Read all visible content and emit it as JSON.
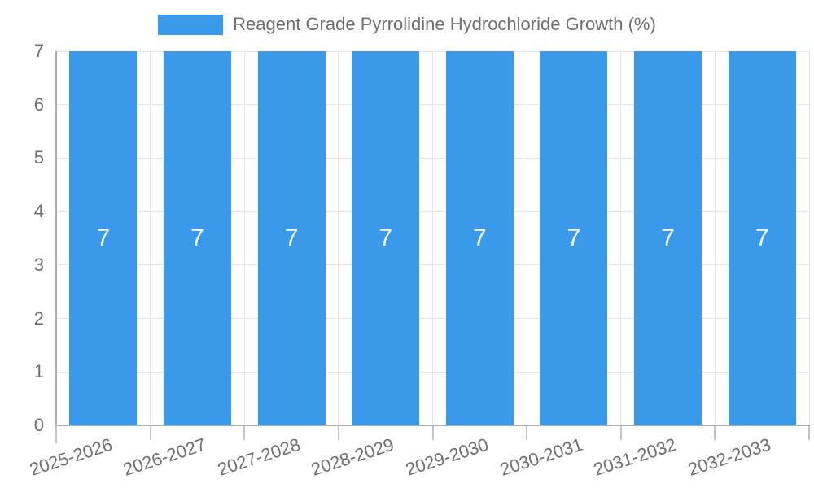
{
  "chart_data": {
    "type": "bar",
    "title": "Reagent Grade Pyrrolidine Hydrochloride Growth (%)",
    "categories": [
      "2025-2026",
      "2026-2027",
      "2027-2028",
      "2028-2029",
      "2029-2030",
      "2030-2031",
      "2031-2032",
      "2032-2033"
    ],
    "series": [
      {
        "name": "Reagent Grade Pyrrolidine Hydrochloride Growth (%)",
        "values": [
          7,
          7,
          7,
          7,
          7,
          7,
          7,
          7
        ]
      }
    ],
    "bar_labels": [
      "7",
      "7",
      "7",
      "7",
      "7",
      "7",
      "7",
      "7"
    ],
    "xlabel": "",
    "ylabel": "",
    "ylim": [
      0,
      7
    ],
    "yticks": [
      0,
      1,
      2,
      3,
      4,
      5,
      6,
      7
    ],
    "grid": true,
    "legend_position": "top-center"
  },
  "colors": {
    "bar": "#3b99ec",
    "bar_label": "#ffffff",
    "grid": "#e6e6e6",
    "axis": "#adadad",
    "tick": "#c4c4c4",
    "text": "#6f6f6f",
    "background": "#ffffff"
  }
}
